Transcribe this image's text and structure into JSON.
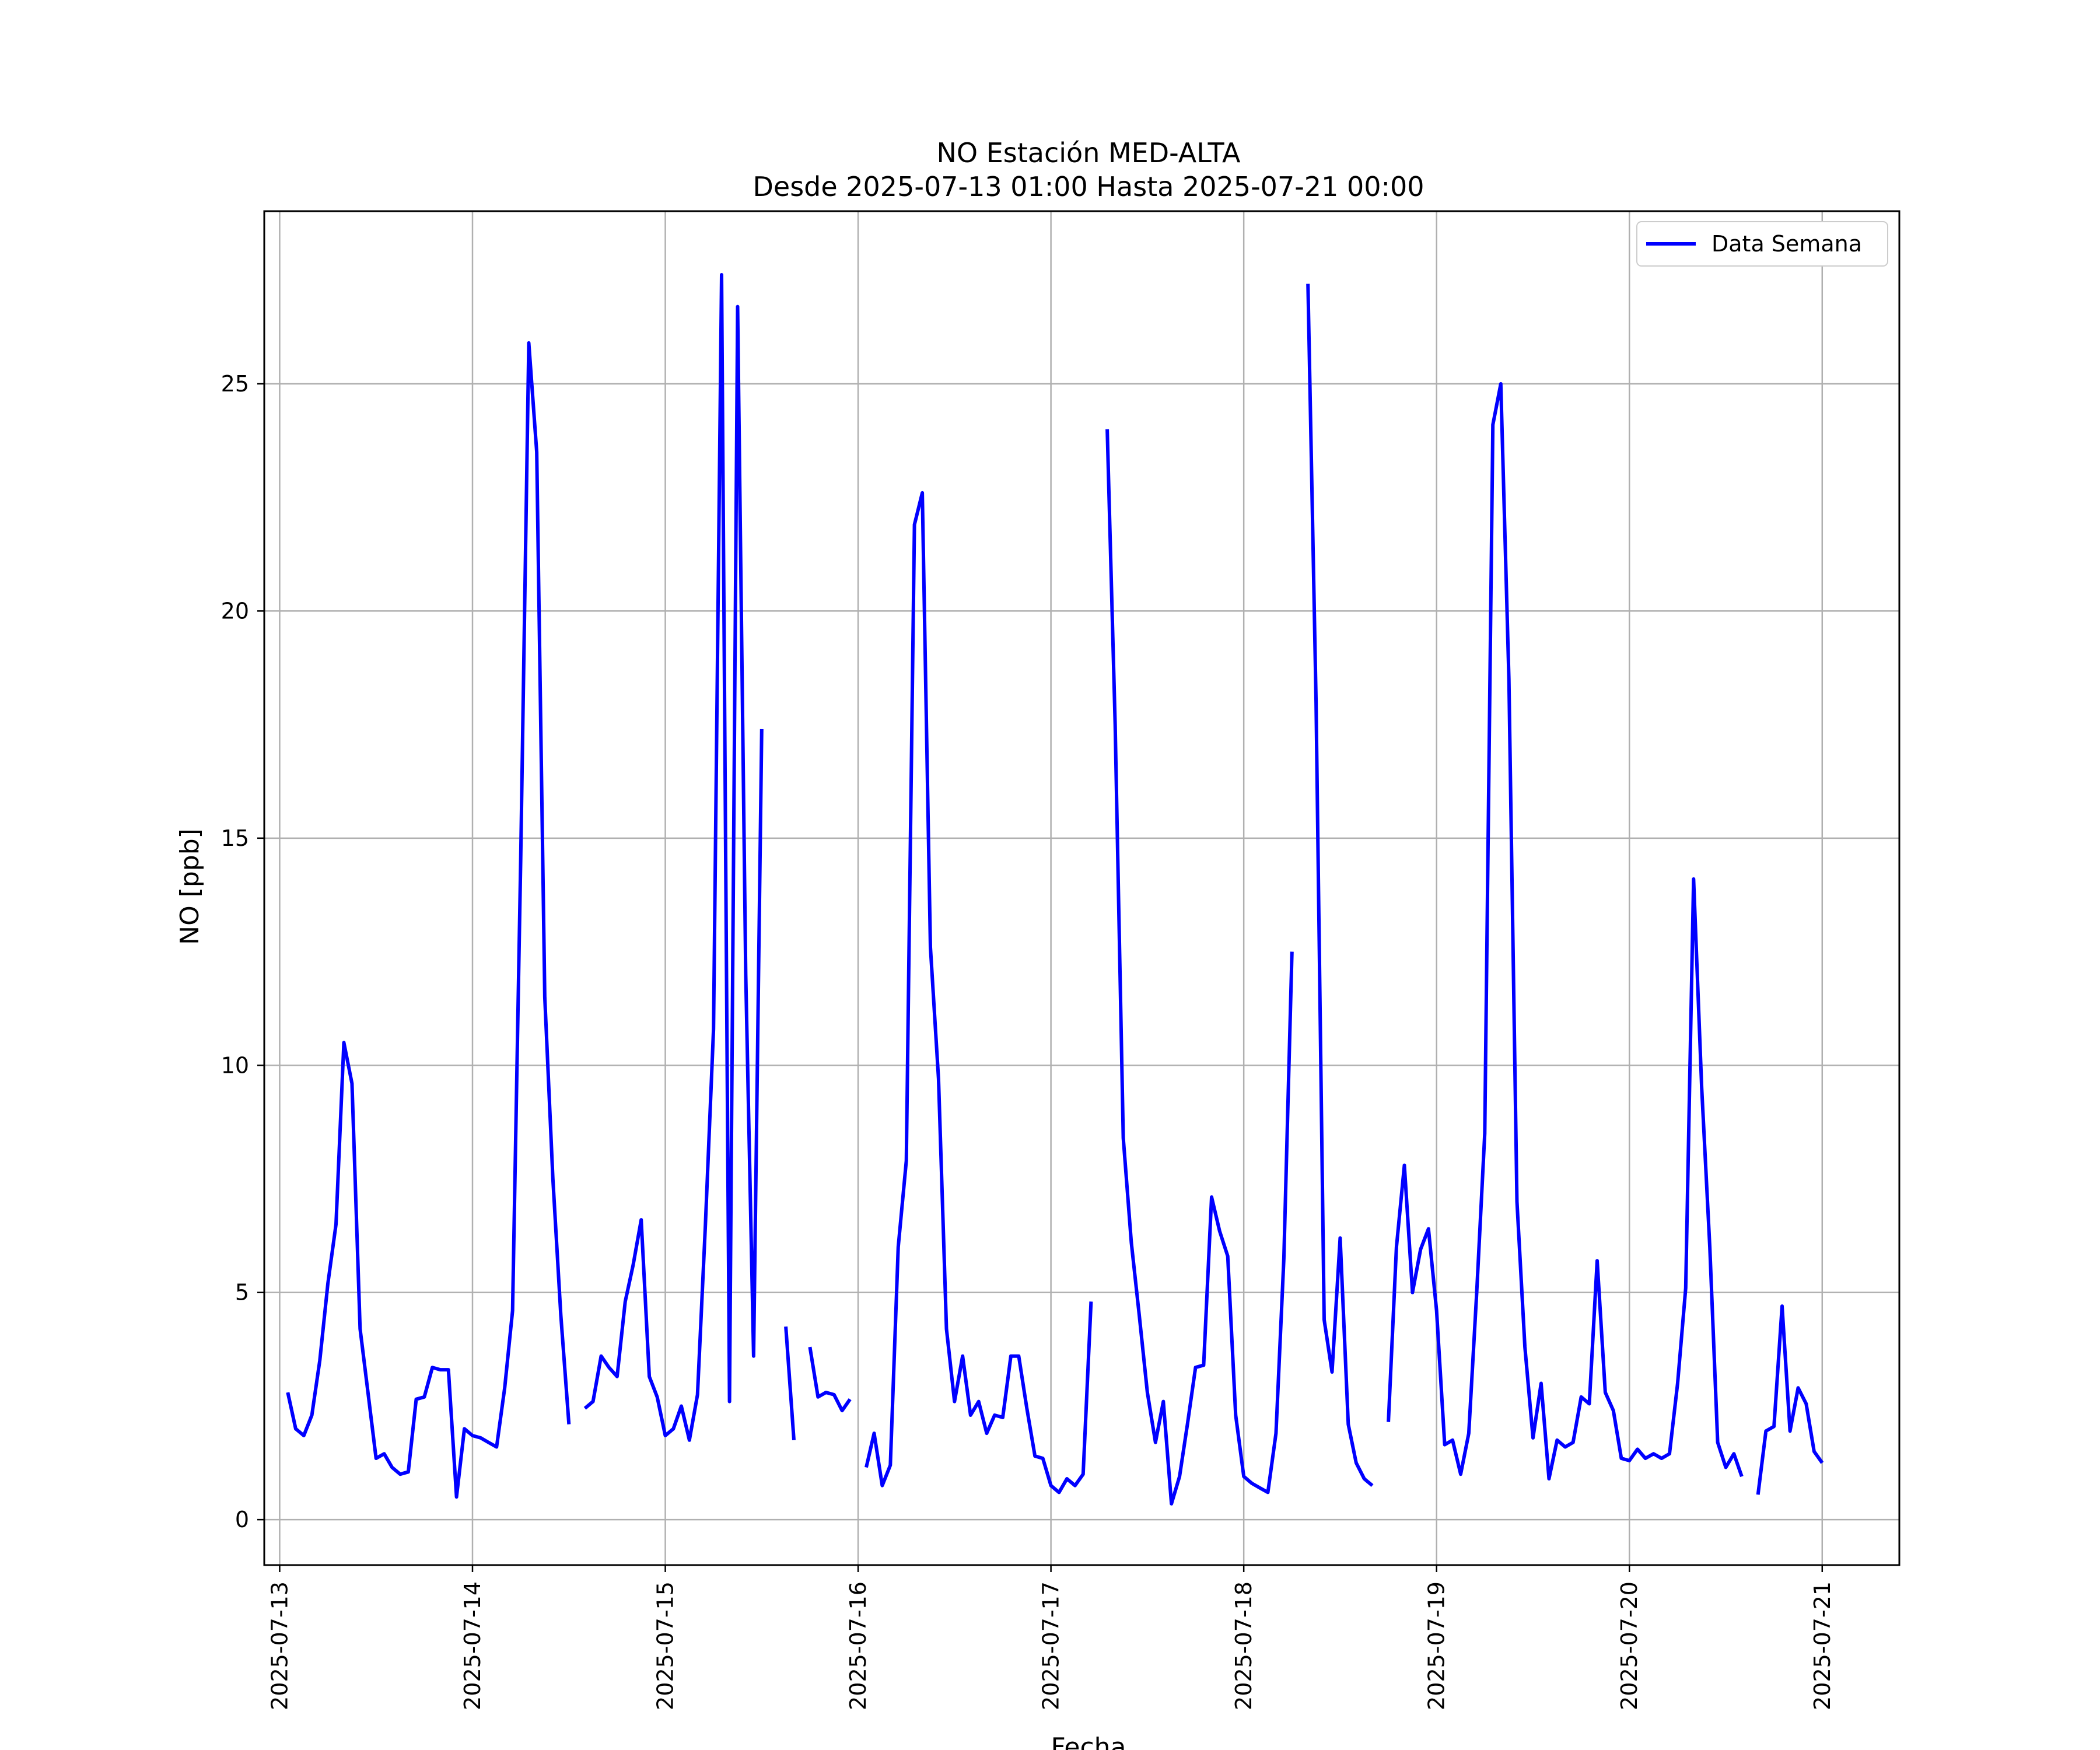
{
  "chart_data": {
    "type": "line",
    "title": "NO Estación MED-ALTA",
    "subtitle": "Desde 2025-07-13 01:00 Hasta 2025-07-21 00:00",
    "xlabel": "Fecha",
    "ylabel": "NO [ppb]",
    "xlim": [
      -0.08,
      8.4
    ],
    "ylim": [
      -1.0,
      28.8
    ],
    "x_ticks": [
      "2025-07-13",
      "2025-07-14",
      "2025-07-15",
      "2025-07-16",
      "2025-07-17",
      "2025-07-18",
      "2025-07-19",
      "2025-07-20",
      "2025-07-21"
    ],
    "y_ticks": [
      0,
      5,
      10,
      15,
      20,
      25
    ],
    "grid": true,
    "legend_position": "top-right",
    "colors": {
      "series": "#0000ff",
      "grid": "#b0b0b0",
      "axes": "#000000"
    },
    "series": [
      {
        "name": "Data Semana",
        "x_unit": "days since 2025-07-13 00:00",
        "points": [
          [
            0.042,
            2.8
          ],
          [
            0.083,
            2.0
          ],
          [
            0.125,
            1.85
          ],
          [
            0.167,
            2.3
          ],
          [
            0.208,
            3.5
          ],
          [
            0.25,
            5.2
          ],
          [
            0.292,
            6.5
          ],
          [
            0.333,
            10.5
          ],
          [
            0.375,
            9.6
          ],
          [
            0.417,
            4.2
          ],
          [
            0.458,
            2.8
          ],
          [
            0.5,
            1.35
          ],
          [
            0.542,
            1.45
          ],
          [
            0.583,
            1.15
          ],
          [
            0.625,
            1.0
          ],
          [
            0.667,
            1.05
          ],
          [
            0.708,
            2.65
          ],
          [
            0.75,
            2.7
          ],
          [
            0.792,
            3.35
          ],
          [
            0.833,
            3.3
          ],
          [
            0.875,
            3.3
          ],
          [
            0.917,
            0.5
          ],
          [
            0.958,
            2.0
          ],
          [
            1.0,
            1.85
          ],
          [
            1.042,
            1.8
          ],
          [
            1.083,
            1.7
          ],
          [
            1.125,
            1.6
          ],
          [
            1.167,
            2.9
          ],
          [
            1.208,
            4.6
          ],
          [
            1.25,
            14.5
          ],
          [
            1.292,
            25.9
          ],
          [
            1.333,
            23.5
          ],
          [
            1.375,
            11.5
          ],
          [
            1.417,
            7.5
          ],
          [
            1.458,
            4.5
          ],
          [
            1.5,
            2.1
          ],
          null,
          [
            1.583,
            2.45
          ],
          [
            1.625,
            2.6
          ],
          [
            1.667,
            3.6
          ],
          [
            1.708,
            3.35
          ],
          [
            1.75,
            3.15
          ],
          [
            1.792,
            4.8
          ],
          [
            1.833,
            5.6
          ],
          [
            1.875,
            6.6
          ],
          [
            1.917,
            3.15
          ],
          [
            1.958,
            2.7
          ],
          [
            2.0,
            1.85
          ],
          [
            2.042,
            2.0
          ],
          [
            2.083,
            2.5
          ],
          [
            2.125,
            1.75
          ],
          [
            2.167,
            2.75
          ],
          [
            2.208,
            6.5
          ],
          [
            2.25,
            10.8
          ],
          [
            2.292,
            27.4
          ],
          [
            2.333,
            2.6
          ],
          [
            2.375,
            26.7
          ],
          [
            2.417,
            12.0
          ],
          [
            2.458,
            3.6
          ],
          [
            2.5,
            17.4
          ],
          null,
          [
            2.625,
            4.25
          ],
          [
            2.667,
            1.75
          ],
          null,
          [
            2.75,
            3.8
          ],
          [
            2.792,
            2.7
          ],
          [
            2.833,
            2.8
          ],
          [
            2.875,
            2.75
          ],
          [
            2.917,
            2.4
          ],
          [
            2.958,
            2.65
          ],
          null,
          [
            3.042,
            1.15
          ],
          [
            3.083,
            1.9
          ],
          [
            3.125,
            0.75
          ],
          [
            3.167,
            1.2
          ],
          [
            3.208,
            6.0
          ],
          [
            3.25,
            7.9
          ],
          [
            3.292,
            21.9
          ],
          [
            3.333,
            22.6
          ],
          [
            3.375,
            12.6
          ],
          [
            3.417,
            9.7
          ],
          [
            3.458,
            4.2
          ],
          [
            3.5,
            2.6
          ],
          [
            3.542,
            3.6
          ],
          [
            3.583,
            2.3
          ],
          [
            3.625,
            2.6
          ],
          [
            3.667,
            1.9
          ],
          [
            3.708,
            2.3
          ],
          [
            3.75,
            2.25
          ],
          [
            3.792,
            3.6
          ],
          [
            3.833,
            3.6
          ],
          [
            3.875,
            2.45
          ],
          [
            3.917,
            1.4
          ],
          [
            3.958,
            1.35
          ],
          [
            4.0,
            0.75
          ],
          [
            4.042,
            0.6
          ],
          [
            4.083,
            0.9
          ],
          [
            4.125,
            0.75
          ],
          [
            4.167,
            1.0
          ],
          [
            4.208,
            4.8
          ],
          null,
          [
            4.292,
            24.0
          ],
          [
            4.333,
            17.5
          ],
          [
            4.375,
            8.4
          ],
          [
            4.417,
            6.1
          ],
          [
            4.458,
            4.5
          ],
          [
            4.5,
            2.8
          ],
          [
            4.542,
            1.7
          ],
          [
            4.583,
            2.6
          ],
          [
            4.625,
            0.35
          ],
          [
            4.667,
            0.95
          ],
          [
            4.708,
            2.1
          ],
          [
            4.75,
            3.35
          ],
          [
            4.792,
            3.4
          ],
          [
            4.833,
            7.1
          ],
          [
            4.875,
            6.35
          ],
          [
            4.917,
            5.8
          ],
          [
            4.958,
            2.3
          ],
          [
            5.0,
            0.95
          ],
          [
            5.042,
            0.8
          ],
          [
            5.083,
            0.7
          ],
          [
            5.125,
            0.6
          ],
          [
            5.167,
            1.9
          ],
          [
            5.208,
            5.75
          ],
          [
            5.25,
            12.5
          ],
          null,
          [
            5.333,
            27.2
          ],
          [
            5.375,
            18.0
          ],
          [
            5.417,
            4.4
          ],
          [
            5.458,
            3.25
          ],
          [
            5.5,
            6.2
          ],
          [
            5.542,
            2.1
          ],
          [
            5.583,
            1.25
          ],
          [
            5.625,
            0.9
          ],
          [
            5.667,
            0.75
          ],
          null,
          [
            5.75,
            2.15
          ],
          [
            5.792,
            6.0
          ],
          [
            5.833,
            7.8
          ],
          [
            5.875,
            5.0
          ],
          [
            5.917,
            5.95
          ],
          [
            5.958,
            6.4
          ],
          [
            6.0,
            4.6
          ],
          [
            6.042,
            1.65
          ],
          [
            6.083,
            1.75
          ],
          [
            6.125,
            1.0
          ],
          [
            6.167,
            1.9
          ],
          [
            6.208,
            5.0
          ],
          [
            6.25,
            8.5
          ],
          [
            6.292,
            24.1
          ],
          [
            6.333,
            25.0
          ],
          [
            6.375,
            18.5
          ],
          [
            6.417,
            7.0
          ],
          [
            6.458,
            3.8
          ],
          [
            6.5,
            1.8
          ],
          [
            6.542,
            3.0
          ],
          [
            6.583,
            0.9
          ],
          [
            6.625,
            1.75
          ],
          [
            6.667,
            1.6
          ],
          [
            6.708,
            1.7
          ],
          [
            6.75,
            2.7
          ],
          [
            6.792,
            2.55
          ],
          [
            6.833,
            5.7
          ],
          [
            6.875,
            2.8
          ],
          [
            6.917,
            2.4
          ],
          [
            6.958,
            1.35
          ],
          [
            7.0,
            1.3
          ],
          [
            7.042,
            1.55
          ],
          [
            7.083,
            1.35
          ],
          [
            7.125,
            1.45
          ],
          [
            7.167,
            1.35
          ],
          [
            7.208,
            1.45
          ],
          [
            7.25,
            3.0
          ],
          [
            7.292,
            5.1
          ],
          [
            7.333,
            14.1
          ],
          [
            7.375,
            9.5
          ],
          [
            7.417,
            6.0
          ],
          [
            7.458,
            1.7
          ],
          [
            7.5,
            1.15
          ],
          [
            7.542,
            1.45
          ],
          [
            7.583,
            0.95
          ],
          null,
          [
            7.667,
            0.55
          ],
          [
            7.708,
            1.95
          ],
          [
            7.75,
            2.05
          ],
          [
            7.792,
            4.7
          ],
          [
            7.833,
            1.95
          ],
          [
            7.875,
            2.9
          ],
          [
            7.917,
            2.55
          ],
          [
            7.958,
            1.5
          ],
          [
            8.0,
            1.25
          ]
        ]
      }
    ]
  }
}
